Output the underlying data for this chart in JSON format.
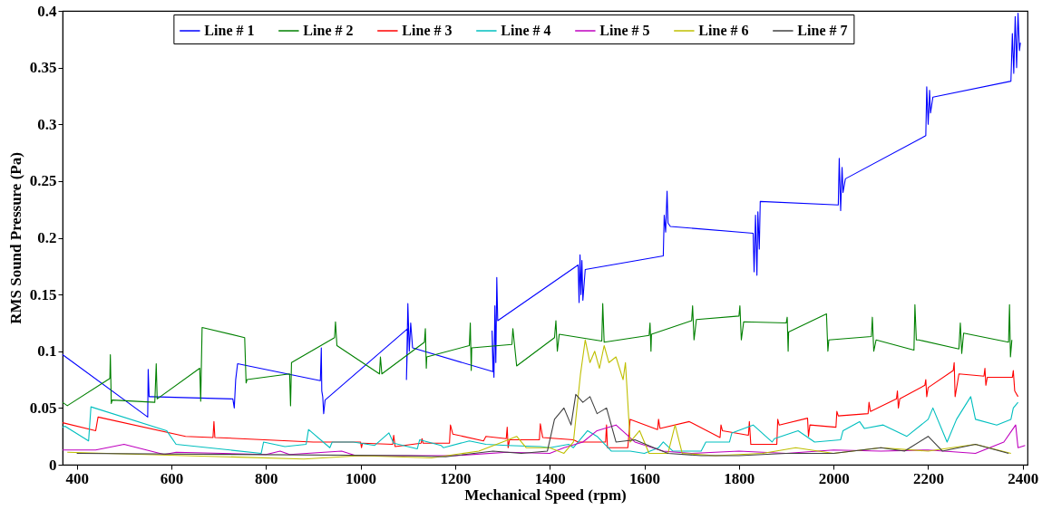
{
  "chart_data": {
    "type": "line",
    "xlabel": "Mechanical Speed (rpm)",
    "ylabel": "RMS Sound Pressure (Pa)",
    "xlim": [
      370,
      2410
    ],
    "xticks": [
      400,
      600,
      800,
      1000,
      1200,
      1400,
      1600,
      1800,
      2000,
      2200,
      2400
    ],
    "ylim": [
      0,
      0.4
    ],
    "yticks": [
      0,
      0.05,
      0.1,
      0.15,
      0.2,
      0.25,
      0.3,
      0.35,
      0.4
    ],
    "grid": false,
    "legend": "top",
    "marker": "none",
    "line_style": "solid",
    "series": [
      {
        "name": "Line # 1",
        "color": "#0000ff",
        "x": [
          370,
          550,
          551,
          553,
          555,
          730,
          733,
          736,
          740,
          915,
          917,
          918,
          920,
          922,
          925,
          1100,
          1097,
          1100,
          1103,
          1106,
          1110,
          1280,
          1278,
          1282,
          1284,
          1286,
          1288,
          1290,
          1460,
          1462,
          1464,
          1466,
          1468,
          1470,
          1475,
          1640,
          1642,
          1645,
          1648,
          1650,
          1655,
          1830,
          1832,
          1835,
          1838,
          1840,
          1843,
          1845,
          2010,
          2012,
          2015,
          2018,
          2020,
          2025,
          2195,
          2197,
          2200,
          2203,
          2205,
          2210,
          2375,
          2378,
          2381,
          2384,
          2387,
          2390,
          2393,
          2395
        ],
        "values": [
          0.097,
          0.042,
          0.084,
          0.06,
          0.06,
          0.058,
          0.05,
          0.075,
          0.089,
          0.074,
          0.103,
          0.065,
          0.06,
          0.045,
          0.057,
          0.12,
          0.075,
          0.142,
          0.1,
          0.125,
          0.103,
          0.082,
          0.118,
          0.077,
          0.14,
          0.09,
          0.165,
          0.127,
          0.176,
          0.143,
          0.185,
          0.15,
          0.18,
          0.145,
          0.172,
          0.184,
          0.22,
          0.205,
          0.241,
          0.213,
          0.21,
          0.204,
          0.17,
          0.22,
          0.167,
          0.223,
          0.19,
          0.232,
          0.229,
          0.27,
          0.224,
          0.262,
          0.24,
          0.252,
          0.29,
          0.333,
          0.3,
          0.33,
          0.31,
          0.324,
          0.338,
          0.38,
          0.345,
          0.395,
          0.35,
          0.398,
          0.365,
          0.372
        ]
      },
      {
        "name": "Line # 2",
        "color": "#008000",
        "x": [
          370,
          380,
          470,
          471,
          473,
          475,
          565,
          568,
          570,
          660,
          662,
          665,
          755,
          758,
          760,
          850,
          852,
          854,
          945,
          947,
          950,
          1040,
          1042,
          1045,
          1135,
          1137,
          1139,
          1140,
          1230,
          1232,
          1234,
          1235,
          1320,
          1322,
          1330,
          1410,
          1413,
          1416,
          1420,
          1510,
          1512,
          1515,
          1610,
          1612,
          1614,
          1615,
          1700,
          1702,
          1705,
          1710,
          1800,
          1802,
          1805,
          1810,
          1900,
          1902,
          1904,
          1905,
          1985,
          1988,
          1990,
          2080,
          2082,
          2085,
          2090,
          2170,
          2172,
          2175,
          2180,
          2265,
          2268,
          2271,
          2275,
          2370,
          2372,
          2374,
          2377
        ],
        "values": [
          0.055,
          0.052,
          0.076,
          0.097,
          0.054,
          0.057,
          0.055,
          0.089,
          0.058,
          0.085,
          0.056,
          0.121,
          0.112,
          0.072,
          0.075,
          0.08,
          0.052,
          0.09,
          0.112,
          0.126,
          0.105,
          0.08,
          0.095,
          0.08,
          0.108,
          0.12,
          0.085,
          0.095,
          0.105,
          0.125,
          0.083,
          0.103,
          0.106,
          0.12,
          0.087,
          0.112,
          0.127,
          0.1,
          0.115,
          0.109,
          0.142,
          0.108,
          0.114,
          0.125,
          0.1,
          0.115,
          0.127,
          0.14,
          0.11,
          0.128,
          0.131,
          0.14,
          0.11,
          0.126,
          0.125,
          0.13,
          0.1,
          0.117,
          0.133,
          0.1,
          0.11,
          0.113,
          0.13,
          0.1,
          0.11,
          0.101,
          0.141,
          0.11,
          0.11,
          0.102,
          0.125,
          0.098,
          0.116,
          0.108,
          0.141,
          0.095,
          0.11
        ]
      },
      {
        "name": "Line # 3",
        "color": "#ff0000",
        "x": [
          370,
          440,
          445,
          630,
          688,
          690,
          692,
          900,
          1000,
          1002,
          1004,
          1068,
          1070,
          1073,
          1128,
          1130,
          1132,
          1188,
          1190,
          1195,
          1260,
          1265,
          1308,
          1310,
          1312,
          1315,
          1378,
          1380,
          1385,
          1450,
          1460,
          1518,
          1520,
          1522,
          1565,
          1570,
          1628,
          1630,
          1633,
          1695,
          1760,
          1762,
          1765,
          1820,
          1822,
          1825,
          1880,
          1882,
          1885,
          1945,
          1947,
          1950,
          2005,
          2007,
          2010,
          2073,
          2075,
          2078,
          2133,
          2135,
          2137,
          2140,
          2193,
          2195,
          2197,
          2200,
          2253,
          2255,
          2257,
          2265,
          2318,
          2320,
          2322,
          2325,
          2378,
          2380,
          2383,
          2390
        ],
        "values": [
          0.037,
          0.03,
          0.042,
          0.025,
          0.024,
          0.038,
          0.024,
          0.02,
          0.02,
          0.015,
          0.019,
          0.018,
          0.026,
          0.016,
          0.019,
          0.023,
          0.019,
          0.019,
          0.035,
          0.027,
          0.021,
          0.025,
          0.023,
          0.033,
          0.015,
          0.022,
          0.022,
          0.036,
          0.024,
          0.022,
          0.02,
          0.02,
          0.035,
          0.015,
          0.015,
          0.04,
          0.031,
          0.04,
          0.032,
          0.038,
          0.024,
          0.035,
          0.03,
          0.026,
          0.038,
          0.018,
          0.018,
          0.04,
          0.035,
          0.041,
          0.025,
          0.035,
          0.033,
          0.047,
          0.043,
          0.045,
          0.055,
          0.047,
          0.058,
          0.065,
          0.05,
          0.058,
          0.07,
          0.075,
          0.06,
          0.068,
          0.083,
          0.09,
          0.06,
          0.08,
          0.078,
          0.085,
          0.07,
          0.077,
          0.077,
          0.083,
          0.065,
          0.06
        ]
      },
      {
        "name": "Line # 4",
        "color": "#00bfbf",
        "x": [
          370,
          375,
          425,
          430,
          590,
          610,
          790,
          795,
          840,
          885,
          890,
          935,
          940,
          985,
          1030,
          1060,
          1070,
          1120,
          1125,
          1170,
          1175,
          1230,
          1265,
          1310,
          1380,
          1400,
          1440,
          1450,
          1480,
          1500,
          1530,
          1570,
          1600,
          1630,
          1640,
          1660,
          1720,
          1730,
          1780,
          1785,
          1830,
          1870,
          1875,
          1925,
          1960,
          2015,
          2020,
          2055,
          2065,
          2105,
          2155,
          2200,
          2210,
          2240,
          2260,
          2290,
          2300,
          2345,
          2375,
          2380,
          2390
        ],
        "values": [
          0.033,
          0.034,
          0.021,
          0.051,
          0.03,
          0.018,
          0.01,
          0.02,
          0.016,
          0.018,
          0.031,
          0.015,
          0.02,
          0.02,
          0.017,
          0.028,
          0.019,
          0.014,
          0.022,
          0.017,
          0.015,
          0.021,
          0.018,
          0.017,
          0.016,
          0.015,
          0.018,
          0.015,
          0.03,
          0.025,
          0.012,
          0.012,
          0.01,
          0.015,
          0.02,
          0.012,
          0.012,
          0.02,
          0.02,
          0.028,
          0.035,
          0.02,
          0.023,
          0.03,
          0.02,
          0.022,
          0.03,
          0.038,
          0.032,
          0.035,
          0.025,
          0.04,
          0.05,
          0.02,
          0.04,
          0.06,
          0.04,
          0.035,
          0.04,
          0.05,
          0.055
        ]
      },
      {
        "name": "Line # 5",
        "color": "#bf00bf",
        "x": [
          370,
          440,
          500,
          585,
          610,
          800,
          830,
          850,
          960,
          990,
          1200,
          1310,
          1400,
          1430,
          1470,
          1500,
          1540,
          1580,
          1640,
          1700,
          1800,
          1900,
          2000,
          2100,
          2200,
          2300,
          2360,
          2385,
          2390,
          2405
        ],
        "values": [
          0.013,
          0.013,
          0.018,
          0.009,
          0.011,
          0.009,
          0.012,
          0.009,
          0.012,
          0.008,
          0.008,
          0.011,
          0.01,
          0.015,
          0.02,
          0.03,
          0.035,
          0.02,
          0.012,
          0.01,
          0.012,
          0.01,
          0.013,
          0.012,
          0.013,
          0.01,
          0.02,
          0.035,
          0.015,
          0.017
        ]
      },
      {
        "name": "Line # 6",
        "color": "#bfbf00",
        "x": [
          380,
          880,
          1000,
          1150,
          1250,
          1300,
          1330,
          1350,
          1400,
          1430,
          1450,
          1465,
          1475,
          1485,
          1495,
          1505,
          1515,
          1525,
          1540,
          1555,
          1560,
          1570,
          1590,
          1610,
          1650,
          1665,
          1680,
          1750,
          1850,
          1920,
          2000,
          2100,
          2200,
          2300,
          2375
        ],
        "values": [
          0.011,
          0.005,
          0.008,
          0.006,
          0.012,
          0.02,
          0.025,
          0.015,
          0.015,
          0.01,
          0.02,
          0.08,
          0.11,
          0.09,
          0.1,
          0.085,
          0.105,
          0.09,
          0.095,
          0.075,
          0.09,
          0.02,
          0.03,
          0.01,
          0.01,
          0.035,
          0.01,
          0.008,
          0.01,
          0.015,
          0.01,
          0.015,
          0.012,
          0.018,
          0.01
        ]
      },
      {
        "name": "Line # 7",
        "color": "#404040",
        "x": [
          400,
          1100,
          1180,
          1280,
          1340,
          1395,
          1410,
          1430,
          1445,
          1455,
          1470,
          1485,
          1500,
          1520,
          1540,
          1580,
          1620,
          1650,
          1720,
          1800,
          1900,
          2000,
          2100,
          2150,
          2200,
          2230,
          2300,
          2370
        ],
        "values": [
          0.01,
          0.008,
          0.007,
          0.012,
          0.01,
          0.012,
          0.04,
          0.05,
          0.035,
          0.062,
          0.055,
          0.06,
          0.045,
          0.05,
          0.02,
          0.022,
          0.015,
          0.01,
          0.008,
          0.008,
          0.01,
          0.01,
          0.015,
          0.012,
          0.025,
          0.012,
          0.018,
          0.01
        ]
      }
    ]
  }
}
